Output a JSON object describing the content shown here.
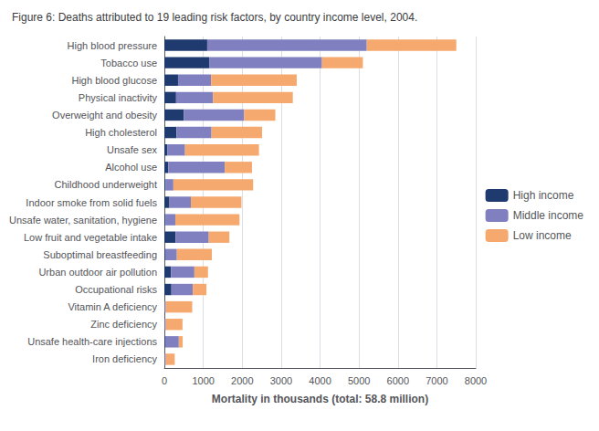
{
  "chart_data": {
    "type": "bar",
    "orientation": "horizontal",
    "stacked": true,
    "title": "Figure 6: Deaths attributed to 19 leading risk factors, by country income level, 2004.",
    "xlabel": "Mortality in thousands (total: 58.8 million)",
    "categories": [
      "High blood pressure",
      "Tobacco use",
      "High blood glucose",
      "Physical inactivity",
      "Overweight and obesity",
      "High cholesterol",
      "Unsafe sex",
      "Alcohol use",
      "Childhood underweight",
      "Indoor smoke from solid fuels",
      "Unsafe water, sanitation, hygiene",
      "Low fruit and vegetable intake",
      "Suboptimal breastfeeding",
      "Urban outdoor air pollution",
      "Occupational risks",
      "Vitamin A deficiency",
      "Zinc deficiency",
      "Unsafe health-care injections",
      "Iron deficiency"
    ],
    "series": [
      {
        "name": "High income",
        "color": "#1f3a6e",
        "values": [
          1100,
          1150,
          350,
          300,
          500,
          310,
          80,
          100,
          30,
          130,
          30,
          290,
          20,
          170,
          180,
          5,
          5,
          20,
          5
        ]
      },
      {
        "name": "Middle income",
        "color": "#8080c0",
        "values": [
          4100,
          2900,
          850,
          950,
          1550,
          900,
          450,
          1450,
          200,
          550,
          250,
          850,
          300,
          600,
          550,
          30,
          30,
          350,
          30
        ]
      },
      {
        "name": "Low income",
        "color": "#f5a96e",
        "values": [
          2300,
          1050,
          2200,
          2050,
          800,
          1300,
          1900,
          700,
          2050,
          1300,
          1650,
          530,
          900,
          350,
          350,
          680,
          430,
          100,
          230
        ]
      }
    ],
    "xlim": [
      0,
      8000
    ],
    "xticks": [
      0,
      1000,
      2000,
      3000,
      4000,
      5000,
      6000,
      7000,
      8000
    ],
    "grid": true,
    "legend": "right"
  }
}
